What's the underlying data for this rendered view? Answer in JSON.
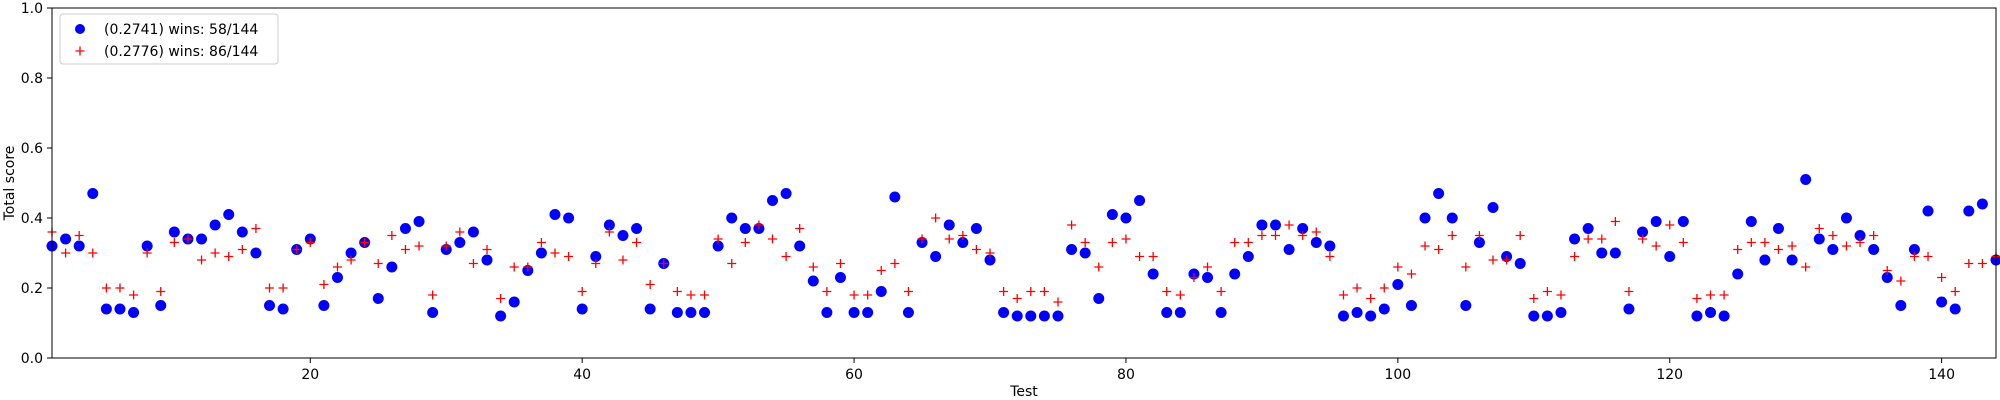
{
  "chart_data": {
    "type": "scatter",
    "xlabel": "Test",
    "ylabel": "Total score",
    "xlim": [
      1,
      144
    ],
    "ylim": [
      0,
      1.0
    ],
    "x_ticks": [
      20,
      40,
      60,
      80,
      100,
      120,
      140
    ],
    "y_ticks": [
      0.0,
      0.2,
      0.4,
      0.6,
      0.8,
      1.0
    ],
    "legend_position": "top-left",
    "grid": false,
    "series": [
      {
        "name": "(0.2741) wins: 58/144",
        "marker": "circle",
        "color": "#0000ff",
        "values": [
          0.32,
          0.34,
          0.32,
          0.47,
          0.14,
          0.14,
          0.13,
          0.32,
          0.15,
          0.36,
          0.34,
          0.34,
          0.38,
          0.41,
          0.36,
          0.3,
          0.15,
          0.14,
          0.31,
          0.34,
          0.15,
          0.23,
          0.3,
          0.33,
          0.17,
          0.26,
          0.37,
          0.39,
          0.13,
          0.31,
          0.33,
          0.36,
          0.28,
          0.12,
          0.16,
          0.25,
          0.3,
          0.41,
          0.4,
          0.14,
          0.29,
          0.38,
          0.35,
          0.37,
          0.14,
          0.27,
          0.13,
          0.13,
          0.13,
          0.32,
          0.4,
          0.37,
          0.37,
          0.45,
          0.47,
          0.32,
          0.22,
          0.13,
          0.23,
          0.13,
          0.13,
          0.19,
          0.46,
          0.13,
          0.33,
          0.29,
          0.38,
          0.33,
          0.37,
          0.28,
          0.13,
          0.12,
          0.12,
          0.12,
          0.12,
          0.31,
          0.3,
          0.17,
          0.41,
          0.4,
          0.45,
          0.24,
          0.13,
          0.13,
          0.24,
          0.23,
          0.13,
          0.24,
          0.29,
          0.38,
          0.38,
          0.31,
          0.37,
          0.33,
          0.32,
          0.12,
          0.13,
          0.12,
          0.14,
          0.21,
          0.15,
          0.4,
          0.47,
          0.4,
          0.15,
          0.33,
          0.43,
          0.29,
          0.27,
          0.12,
          0.12,
          0.13,
          0.34,
          0.37,
          0.3,
          0.3,
          0.14,
          0.36,
          0.39,
          0.29,
          0.39,
          0.12,
          0.13,
          0.12,
          0.24,
          0.39,
          0.28,
          0.37,
          0.28,
          0.51,
          0.34,
          0.31,
          0.4,
          0.35,
          0.31,
          0.23,
          0.15,
          0.31,
          0.42,
          0.16,
          0.14,
          0.42,
          0.44,
          0.28
        ]
      },
      {
        "name": "(0.2776) wins: 86/144",
        "marker": "plus",
        "color": "#ff0000",
        "values": [
          0.36,
          0.3,
          0.35,
          0.3,
          0.2,
          0.2,
          0.18,
          0.3,
          0.19,
          0.33,
          0.34,
          0.28,
          0.3,
          0.29,
          0.31,
          0.37,
          0.2,
          0.2,
          0.31,
          0.33,
          0.21,
          0.26,
          0.28,
          0.33,
          0.27,
          0.35,
          0.31,
          0.32,
          0.18,
          0.32,
          0.36,
          0.27,
          0.31,
          0.17,
          0.26,
          0.26,
          0.33,
          0.3,
          0.29,
          0.19,
          0.27,
          0.36,
          0.28,
          0.33,
          0.21,
          0.27,
          0.19,
          0.18,
          0.18,
          0.34,
          0.27,
          0.33,
          0.38,
          0.34,
          0.29,
          0.37,
          0.26,
          0.19,
          0.27,
          0.18,
          0.18,
          0.25,
          0.27,
          0.19,
          0.34,
          0.4,
          0.34,
          0.35,
          0.31,
          0.3,
          0.19,
          0.17,
          0.19,
          0.19,
          0.16,
          0.38,
          0.33,
          0.26,
          0.33,
          0.34,
          0.29,
          0.29,
          0.19,
          0.18,
          0.23,
          0.26,
          0.19,
          0.33,
          0.33,
          0.35,
          0.35,
          0.38,
          0.35,
          0.36,
          0.29,
          0.18,
          0.2,
          0.17,
          0.2,
          0.26,
          0.24,
          0.32,
          0.31,
          0.35,
          0.26,
          0.35,
          0.28,
          0.28,
          0.35,
          0.17,
          0.19,
          0.18,
          0.29,
          0.34,
          0.34,
          0.39,
          0.19,
          0.34,
          0.32,
          0.38,
          0.33,
          0.17,
          0.18,
          0.18,
          0.31,
          0.33,
          0.33,
          0.31,
          0.32,
          0.26,
          0.37,
          0.35,
          0.32,
          0.33,
          0.35,
          0.25,
          0.22,
          0.29,
          0.29,
          0.23,
          0.19,
          0.27,
          0.27,
          0.29
        ]
      }
    ]
  }
}
